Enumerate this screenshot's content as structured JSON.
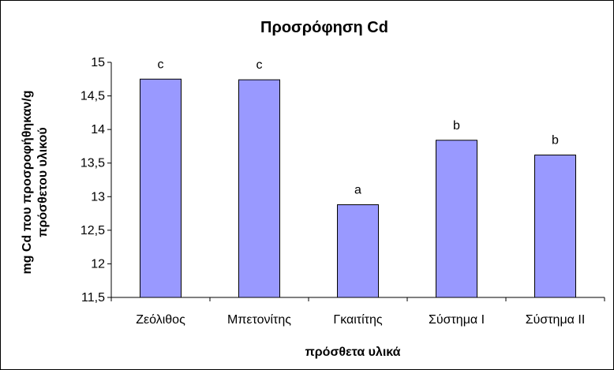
{
  "chart_data": {
    "type": "bar",
    "title": "Προσρόφηση  Cd",
    "xlabel": "πρόσθετα υλικά",
    "ylabel_lines": [
      "mg Cd που προσροφήθηκαν/g",
      "πρόσθετου υλικού"
    ],
    "ylim": [
      11.5,
      15
    ],
    "yticks": [
      "11,5",
      "12",
      "12,5",
      "13",
      "13,5",
      "14",
      "14,5",
      "15"
    ],
    "ytick_values": [
      11.5,
      12,
      12.5,
      13,
      13.5,
      14,
      14.5,
      15
    ],
    "categories": [
      "Ζεόλιθος",
      "Μπετονίτης",
      "Γκαιτίτης",
      "Σύστημα  Ι",
      "Σύστημα  ΙΙ"
    ],
    "values": [
      14.75,
      14.74,
      12.88,
      13.84,
      13.62
    ],
    "significance_labels": [
      "c",
      "c",
      "a",
      "b",
      "b"
    ],
    "bar_color": "#9999ff",
    "bar_stroke": "#000000",
    "grid": false,
    "legend": "none"
  }
}
